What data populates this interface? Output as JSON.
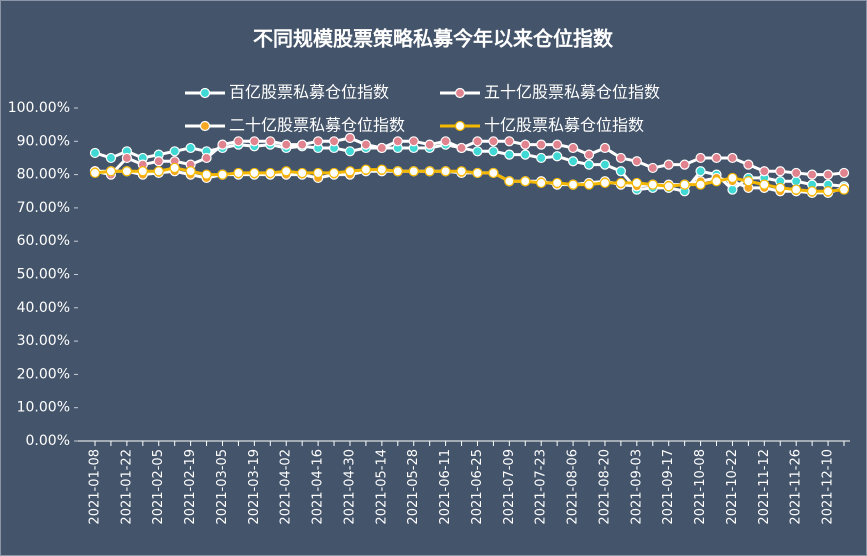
{
  "chart_data": {
    "type": "line",
    "title": "不同规模股票策略私募今年以来仓位指数",
    "categories": [
      "2021-01-08",
      null,
      "2021-01-22",
      null,
      "2021-02-05",
      null,
      "2021-02-19",
      null,
      "2021-03-05",
      null,
      "2021-03-19",
      null,
      "2021-04-02",
      null,
      "2021-04-16",
      null,
      "2021-04-30",
      null,
      "2021-05-14",
      null,
      "2021-05-28",
      null,
      "2021-06-11",
      null,
      "2021-06-25",
      null,
      "2021-07-09",
      null,
      "2021-07-23",
      null,
      "2021-08-06",
      null,
      "2021-08-20",
      null,
      "2021-09-03",
      null,
      "2021-09-17",
      null,
      "2021-10-08",
      null,
      "2021-10-22",
      null,
      "2021-11-12",
      null,
      "2021-11-26",
      null,
      "2021-12-10",
      null
    ],
    "series": [
      {
        "name": "百亿股票私募仓位指数",
        "color": "#3fd8d4",
        "line_color": "#ffffff",
        "values": [
          86.5,
          85,
          87,
          85,
          86,
          87,
          88,
          87,
          88,
          89,
          88.5,
          89,
          88,
          88.5,
          88,
          88,
          87,
          88,
          88,
          88,
          88,
          88,
          89,
          88,
          87,
          87,
          86,
          86,
          85,
          85.5,
          84,
          83,
          83,
          81,
          75.5,
          76,
          76,
          75,
          81,
          80,
          75.5,
          79,
          79,
          78,
          78,
          77,
          77,
          76.5
        ]
      },
      {
        "name": "五十亿股票私募仓位指数",
        "color": "#e0838f",
        "line_color": "#ffffff",
        "values": [
          81,
          80,
          85,
          83,
          84,
          84,
          83,
          85,
          89,
          90,
          90,
          90,
          89,
          89,
          90,
          90,
          91,
          89,
          88,
          90,
          90,
          89,
          90,
          88,
          90,
          90,
          90,
          89,
          89,
          89,
          88,
          86,
          88,
          85,
          84,
          82,
          83,
          83,
          85,
          85,
          85,
          83,
          81,
          81,
          80.5,
          80,
          80,
          80.5
        ]
      },
      {
        "name": "二十亿股票私募仓位指数",
        "color": "#f5a623",
        "line_color": "#ffffff",
        "values": [
          81,
          81,
          81,
          80,
          80.5,
          81,
          80,
          79,
          80,
          80,
          80,
          80,
          80,
          80,
          79,
          80,
          80,
          81,
          81,
          81,
          81,
          81,
          81,
          80.5,
          80.5,
          80.5,
          78,
          78,
          78,
          77,
          77,
          77.5,
          78,
          77,
          76.5,
          77,
          77,
          77,
          78,
          79,
          78,
          76,
          76,
          75,
          75,
          74.5,
          74.5,
          76
        ]
      },
      {
        "name": "十亿股票私募仓位指数",
        "color": "#ffffff",
        "line_color": "#f5b800",
        "values": [
          80.5,
          81,
          81,
          81,
          81,
          82,
          81,
          80,
          80,
          80.5,
          80.5,
          80.5,
          81,
          80.5,
          80.5,
          80.5,
          81,
          81.5,
          81.5,
          81,
          81,
          81,
          81,
          81,
          80.5,
          80.5,
          78,
          78,
          77.5,
          77.5,
          77,
          77,
          77.5,
          77.5,
          77.5,
          77,
          76.5,
          77,
          77,
          78,
          79,
          78,
          77,
          76,
          75.5,
          75,
          75,
          75.5
        ]
      }
    ],
    "ylim": [
      0,
      100
    ],
    "yticks": [
      {
        "value": 0,
        "label": "0.00%"
      },
      {
        "value": 10,
        "label": "10.00%"
      },
      {
        "value": 20,
        "label": "20.00%"
      },
      {
        "value": 30,
        "label": "30.00%"
      },
      {
        "value": 40,
        "label": "40.00%"
      },
      {
        "value": 50,
        "label": "50.00%"
      },
      {
        "value": 60,
        "label": "60.00%"
      },
      {
        "value": 70,
        "label": "70.00%"
      },
      {
        "value": 80,
        "label": "80.00%"
      },
      {
        "value": 90,
        "label": "90.00%"
      },
      {
        "value": 100,
        "label": "100.00%"
      }
    ],
    "grid": false
  }
}
